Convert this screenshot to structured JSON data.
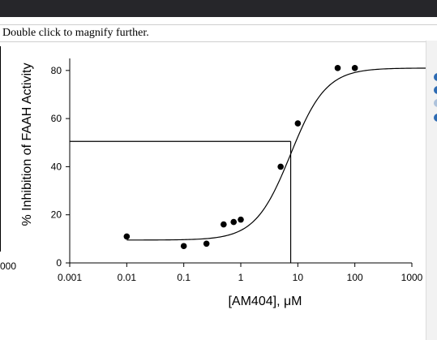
{
  "hint_text": "Double click to magnify further.",
  "left_fragment_label": "000",
  "accent_color": "#2d6bb3",
  "chart_data": {
    "type": "scatter",
    "xscale": "log",
    "xlim": [
      0.001,
      1000
    ],
    "ylim": [
      0,
      85
    ],
    "xticks": [
      "0.001",
      "0.01",
      "0.1",
      "1",
      "10",
      "100",
      "1000"
    ],
    "yticks": [
      "0",
      "20",
      "40",
      "60",
      "80"
    ],
    "xlabel": "[AM404], μM",
    "ylabel": "% Inhibition of FAAH Activity",
    "points": [
      {
        "x": 0.01,
        "y": 11
      },
      {
        "x": 0.1,
        "y": 7
      },
      {
        "x": 0.25,
        "y": 8
      },
      {
        "x": 0.5,
        "y": 16
      },
      {
        "x": 0.75,
        "y": 17
      },
      {
        "x": 1.0,
        "y": 18
      },
      {
        "x": 5.0,
        "y": 40
      },
      {
        "x": 10.0,
        "y": 58
      },
      {
        "x": 50.0,
        "y": 81
      },
      {
        "x": 100.0,
        "y": 81
      }
    ],
    "fit": {
      "bottom": 9.5,
      "top": 81,
      "ic50": 7.5,
      "hill": 1.4
    },
    "ic50_marker": {
      "x": 7.5,
      "y": 50.5
    }
  }
}
